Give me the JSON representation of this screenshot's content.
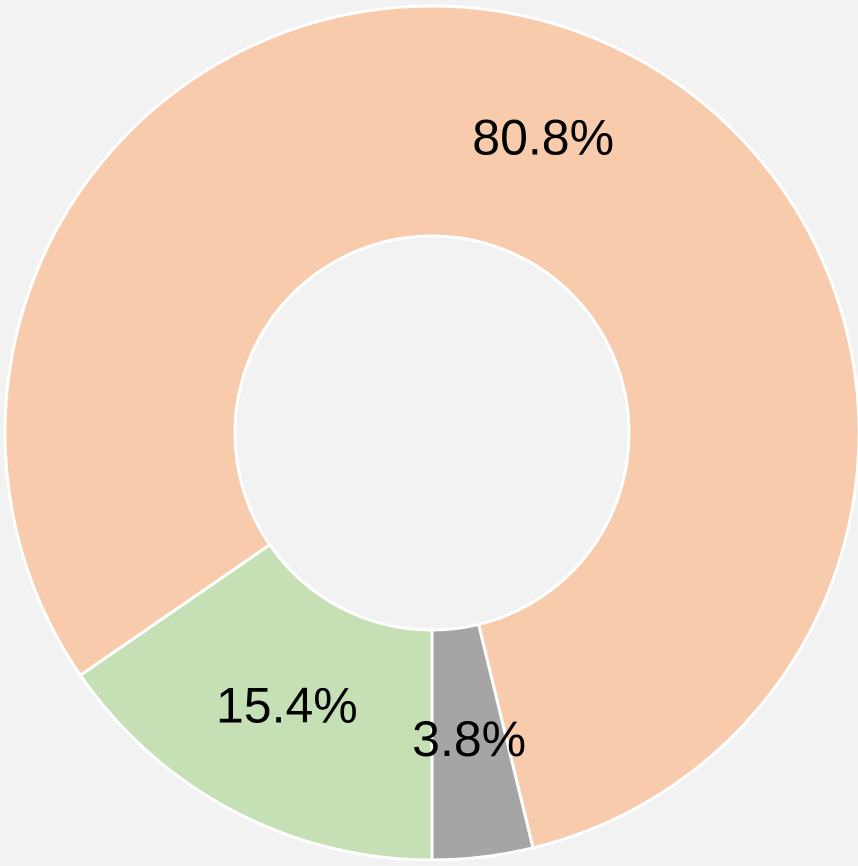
{
  "chart_data": {
    "type": "donut",
    "values": [
      15.4,
      80.8,
      3.8
    ],
    "value_labels": [
      "15.4%",
      "80.8%",
      "3.8%"
    ],
    "colors": [
      "#c5e0b4",
      "#f8cbad",
      "#a5a5a5"
    ]
  }
}
